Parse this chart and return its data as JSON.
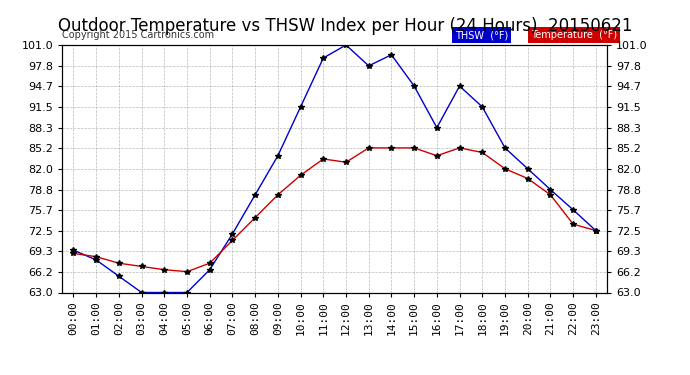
{
  "title": "Outdoor Temperature vs THSW Index per Hour (24 Hours)  20150621",
  "copyright": "Copyright 2015 Cartronics.com",
  "hours": [
    "00:00",
    "01:00",
    "02:00",
    "03:00",
    "04:00",
    "05:00",
    "06:00",
    "07:00",
    "08:00",
    "09:00",
    "10:00",
    "11:00",
    "12:00",
    "13:00",
    "14:00",
    "15:00",
    "16:00",
    "17:00",
    "18:00",
    "19:00",
    "20:00",
    "21:00",
    "22:00",
    "23:00"
  ],
  "thsw": [
    69.5,
    68.0,
    65.5,
    63.0,
    63.0,
    63.0,
    66.5,
    72.0,
    78.0,
    84.0,
    91.5,
    99.0,
    101.0,
    97.8,
    99.5,
    94.7,
    88.3,
    94.7,
    91.5,
    85.2,
    82.0,
    78.8,
    75.7,
    72.5
  ],
  "temperature": [
    69.0,
    68.5,
    67.5,
    67.0,
    66.5,
    66.2,
    67.5,
    71.0,
    74.5,
    78.0,
    81.0,
    83.5,
    83.0,
    85.2,
    85.2,
    85.2,
    84.0,
    85.2,
    84.5,
    82.0,
    80.5,
    78.0,
    73.5,
    72.5
  ],
  "ylim": [
    63.0,
    101.0
  ],
  "ytick_labels": [
    "63.0",
    "66.2",
    "69.3",
    "72.5",
    "75.7",
    "78.8",
    "82.0",
    "85.2",
    "88.3",
    "91.5",
    "94.7",
    "97.8",
    "101.0"
  ],
  "ytick_values": [
    63.0,
    66.2,
    69.3,
    72.5,
    75.7,
    78.8,
    82.0,
    85.2,
    88.3,
    91.5,
    94.7,
    97.8,
    101.0
  ],
  "thsw_color": "#0000cc",
  "temp_color": "#cc0000",
  "bg_color": "#ffffff",
  "grid_color": "#aaaaaa",
  "title_fontsize": 12,
  "tick_fontsize": 8,
  "copyright_fontsize": 7
}
